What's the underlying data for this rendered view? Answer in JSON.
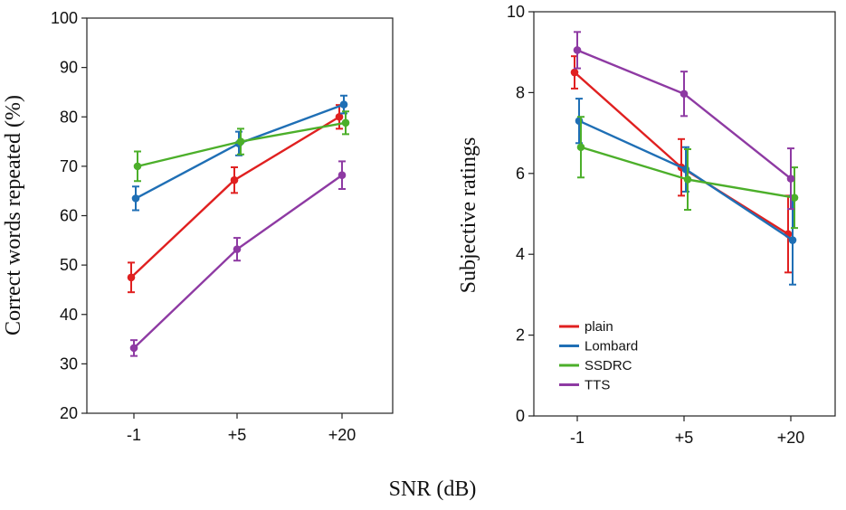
{
  "colors": {
    "plain": "#e02020",
    "Lombard": "#1f6fb5",
    "SSDRC": "#4caf2a",
    "TTS": "#8e3aa3",
    "axis": "#222222"
  },
  "shared_xlabel": "SNR (dB)",
  "chart_data": [
    {
      "type": "line",
      "title": "",
      "xlabel": "",
      "ylabel": "Correct words repeated (%)",
      "categories": [
        "-1",
        "+5",
        "+20"
      ],
      "ylim": [
        20,
        100
      ],
      "yticks": [
        20,
        30,
        40,
        50,
        60,
        70,
        80,
        90,
        100
      ],
      "legend": false,
      "series": [
        {
          "name": "plain",
          "values": [
            47.5,
            67.2,
            80.0
          ],
          "errors": [
            3.0,
            2.6,
            2.4
          ]
        },
        {
          "name": "Lombard",
          "values": [
            63.5,
            74.6,
            82.5
          ],
          "errors": [
            2.4,
            2.4,
            1.8
          ]
        },
        {
          "name": "SSDRC",
          "values": [
            70.0,
            75.0,
            78.8
          ],
          "errors": [
            3.0,
            2.6,
            2.3
          ]
        },
        {
          "name": "TTS",
          "values": [
            33.2,
            53.2,
            68.2
          ],
          "errors": [
            1.6,
            2.3,
            2.8
          ]
        }
      ]
    },
    {
      "type": "line",
      "title": "",
      "xlabel": "",
      "ylabel": "Subjective ratings",
      "categories": [
        "-1",
        "+5",
        "+20"
      ],
      "ylim": [
        0,
        10
      ],
      "yticks": [
        0,
        2,
        4,
        6,
        8,
        10
      ],
      "legend": true,
      "legend_position": "bottom-left",
      "series": [
        {
          "name": "plain",
          "values": [
            8.5,
            6.15,
            4.5
          ],
          "errors": [
            0.4,
            0.7,
            0.95
          ]
        },
        {
          "name": "Lombard",
          "values": [
            7.3,
            6.1,
            4.35
          ],
          "errors": [
            0.55,
            0.55,
            1.1
          ]
        },
        {
          "name": "SSDRC",
          "values": [
            6.65,
            5.85,
            5.4
          ],
          "errors": [
            0.75,
            0.75,
            0.75
          ]
        },
        {
          "name": "TTS",
          "values": [
            9.05,
            7.97,
            5.87
          ],
          "errors": [
            0.45,
            0.55,
            0.75
          ]
        }
      ]
    }
  ]
}
